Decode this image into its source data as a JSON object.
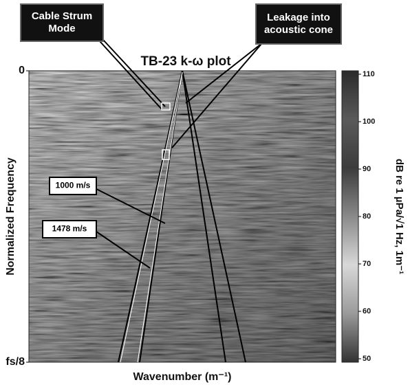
{
  "chart_data": {
    "type": "heatmap",
    "title": "TB-23 k-ω plot",
    "xlabel": "Wavenumber (m⁻¹)",
    "ylabel": "Normalized Frequency",
    "ylim": [
      0,
      0.125
    ],
    "yticks": [
      0,
      {
        "value": 0.125,
        "label": "fs/8"
      }
    ],
    "colorbar": {
      "label": "dB re 1 µPa/√1 Hz, 1m⁻¹",
      "lim": [
        50,
        110
      ],
      "ticks": [
        110,
        100,
        90,
        80,
        70,
        60,
        50
      ],
      "colors": [
        "#2a2a2a",
        "#5a5a5a",
        "#3c3c3c",
        "#8a8a8a",
        "#d8d8d8",
        "#9a9a9a",
        "#333333"
      ]
    },
    "annotations": [
      {
        "lines": [
          "Cable Strum",
          "Mode"
        ],
        "style": "dark"
      },
      {
        "lines": [
          "Leakage into",
          "acoustic cone"
        ],
        "style": "dark"
      },
      {
        "lines": [
          "1000 m/s"
        ],
        "style": "light"
      },
      {
        "lines": [
          "1478 m/s"
        ],
        "style": "light"
      }
    ]
  }
}
